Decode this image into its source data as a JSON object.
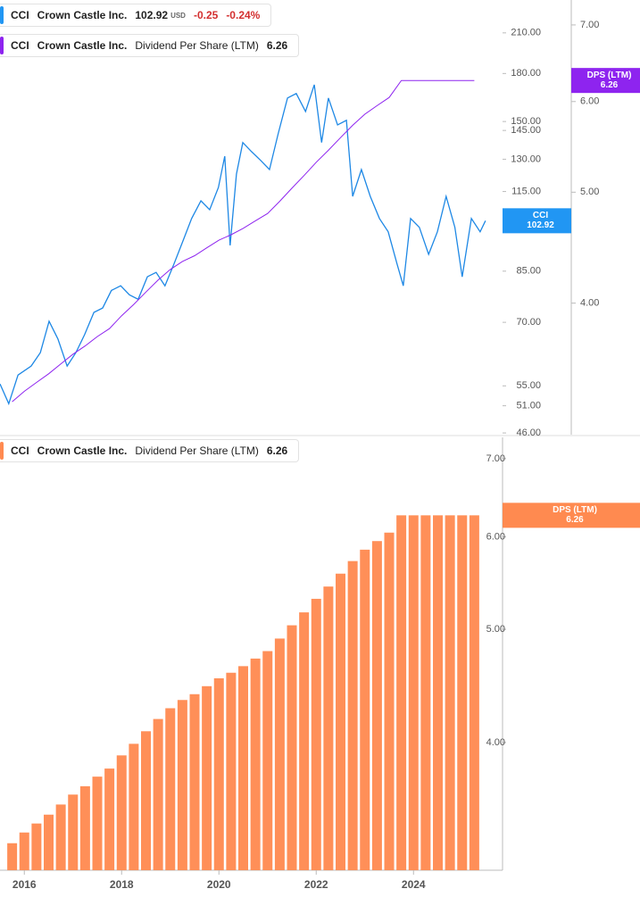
{
  "chart_data": [
    {
      "type": "line",
      "legends": [
        {
          "ticker": "CCI",
          "name": "Crown Castle Inc.",
          "value": "102.92",
          "currency": "USD",
          "change": "-0.25",
          "change_pct": "-0.24%",
          "color": "#2196f3"
        },
        {
          "ticker": "CCI",
          "name": "Crown Castle Inc.",
          "metric": "Dividend Per Share (LTM)",
          "value": "6.26",
          "color": "#8e24ef"
        }
      ],
      "xlim": [
        2015.5,
        2025.83
      ],
      "log_scale": true,
      "ylim": [
        45.7,
        237.9
      ],
      "yticks": [
        {
          "value": 210,
          "label": "210.00"
        },
        {
          "value": 180,
          "label": "180.00"
        },
        {
          "value": 150,
          "label": "150.00"
        },
        {
          "value": 145,
          "label": "145.00"
        },
        {
          "value": 130,
          "label": "130.00"
        },
        {
          "value": 115,
          "label": "115.00"
        },
        {
          "value": 85,
          "label": "85.00"
        },
        {
          "value": 70,
          "label": "70.00"
        },
        {
          "value": 55,
          "label": "55.00"
        },
        {
          "value": 51,
          "label": "51.00"
        },
        {
          "value": 46,
          "label": "46.00"
        }
      ],
      "y2lim": [
        3.07,
        7.36
      ],
      "y2ticks": [
        {
          "value": 7,
          "label": "7.00"
        },
        {
          "value": 6,
          "label": "6.00"
        },
        {
          "value": 5,
          "label": "5.00"
        },
        {
          "value": 4,
          "label": "4.00"
        }
      ],
      "series": [
        {
          "name": "CCI",
          "color": "#1e88e5",
          "x": [
            2015.5,
            2015.68,
            2015.87,
            2016.14,
            2016.33,
            2016.51,
            2016.69,
            2016.88,
            2017.06,
            2017.24,
            2017.43,
            2017.61,
            2017.79,
            2017.98,
            2018.16,
            2018.34,
            2018.53,
            2018.71,
            2018.89,
            2019.08,
            2019.26,
            2019.44,
            2019.63,
            2019.81,
            2019.99,
            2020.12,
            2020.23,
            2020.36,
            2020.49,
            2020.67,
            2020.86,
            2021.04,
            2021.22,
            2021.41,
            2021.59,
            2021.78,
            2021.96,
            2022.11,
            2022.25,
            2022.44,
            2022.62,
            2022.75,
            2022.93,
            2023.11,
            2023.3,
            2023.48,
            2023.66,
            2023.79,
            2023.94,
            2024.12,
            2024.31,
            2024.49,
            2024.67,
            2024.85,
            2025.0,
            2025.19,
            2025.37,
            2025.48
          ],
          "values": [
            55.4,
            51.4,
            57.3,
            59.3,
            62.4,
            70.3,
            65.7,
            59.3,
            62.4,
            66.8,
            72.7,
            73.9,
            79.0,
            80.4,
            77.7,
            76.4,
            83.2,
            84.6,
            80.4,
            87.5,
            95.3,
            103.8,
            111.0,
            107.3,
            116.8,
            131.5,
            93.7,
            122.9,
            138.5,
            133.8,
            129.4,
            125.0,
            143.3,
            164.0,
            166.8,
            155.8,
            172.5,
            138.5,
            164.0,
            148.1,
            150.7,
            112.9,
            125.0,
            112.9,
            103.8,
            98.7,
            87.5,
            80.4,
            103.8,
            100.4,
            90.6,
            98.7,
            112.9,
            100.4,
            83.2,
            103.8,
            98.7,
            102.92
          ]
        },
        {
          "name": "Dividend Per Share (LTM)",
          "color": "#8e24ef",
          "axis": "y2",
          "x": [
            2015.75,
            2016.0,
            2016.25,
            2016.5,
            2016.75,
            2017.0,
            2017.25,
            2017.5,
            2017.75,
            2018.0,
            2018.25,
            2018.5,
            2018.75,
            2019.0,
            2019.25,
            2019.5,
            2019.75,
            2020.0,
            2020.25,
            2020.5,
            2020.75,
            2021.0,
            2021.25,
            2021.5,
            2021.75,
            2022.0,
            2022.25,
            2022.5,
            2022.75,
            2023.0,
            2023.25,
            2023.5,
            2023.75,
            2024.0,
            2024.25,
            2024.5,
            2024.75,
            2025.0,
            2025.25
          ],
          "values": [
            3.28,
            3.35,
            3.41,
            3.47,
            3.54,
            3.61,
            3.67,
            3.74,
            3.8,
            3.9,
            3.99,
            4.09,
            4.19,
            4.28,
            4.35,
            4.4,
            4.47,
            4.54,
            4.59,
            4.65,
            4.72,
            4.79,
            4.91,
            5.04,
            5.17,
            5.31,
            5.44,
            5.58,
            5.72,
            5.85,
            5.95,
            6.05,
            6.26,
            6.26,
            6.26,
            6.26,
            6.26,
            6.26,
            6.26
          ]
        }
      ],
      "tags": [
        {
          "label": "CCI",
          "value": 102.92,
          "color": "#2196f3"
        },
        {
          "label": "DPS (LTM)",
          "value": 6.26,
          "color": "#8e24ef",
          "axis": "y2"
        }
      ]
    },
    {
      "type": "bar",
      "legends": [
        {
          "ticker": "CCI",
          "name": "Crown Castle Inc.",
          "metric": "Dividend Per Share (LTM)",
          "value": "6.26",
          "color": "#ff8a50"
        }
      ],
      "xlim": [
        2015.5,
        2025.83
      ],
      "xticks": [
        2016,
        2018,
        2020,
        2022,
        2024
      ],
      "log_scale": true,
      "ylim": [
        3.11,
        7.3
      ],
      "yticks": [
        {
          "value": 7,
          "label": "7.00"
        },
        {
          "value": 6,
          "label": "6.00"
        },
        {
          "value": 5,
          "label": "5.00"
        },
        {
          "value": 4,
          "label": "4.00"
        }
      ],
      "series": [
        {
          "name": "Dividend Per Share (LTM)",
          "color": "#ff8f58",
          "x": [
            2015.75,
            2016.0,
            2016.25,
            2016.5,
            2016.75,
            2017.0,
            2017.25,
            2017.5,
            2017.75,
            2018.0,
            2018.25,
            2018.5,
            2018.75,
            2019.0,
            2019.25,
            2019.5,
            2019.75,
            2020.0,
            2020.25,
            2020.5,
            2020.75,
            2021.0,
            2021.25,
            2021.5,
            2021.75,
            2022.0,
            2022.25,
            2022.5,
            2022.75,
            2023.0,
            2023.25,
            2023.5,
            2023.75,
            2024.0,
            2024.25,
            2024.5,
            2024.75,
            2025.0,
            2025.25
          ],
          "values": [
            3.28,
            3.35,
            3.41,
            3.47,
            3.54,
            3.61,
            3.67,
            3.74,
            3.8,
            3.9,
            3.99,
            4.09,
            4.19,
            4.28,
            4.35,
            4.4,
            4.47,
            4.54,
            4.59,
            4.65,
            4.72,
            4.79,
            4.91,
            5.04,
            5.17,
            5.31,
            5.44,
            5.58,
            5.72,
            5.85,
            5.95,
            6.05,
            6.26,
            6.26,
            6.26,
            6.26,
            6.26,
            6.26,
            6.26
          ]
        }
      ],
      "tags": [
        {
          "label": "DPS (LTM)",
          "value": 6.26,
          "color": "#ff8a50"
        }
      ]
    }
  ]
}
